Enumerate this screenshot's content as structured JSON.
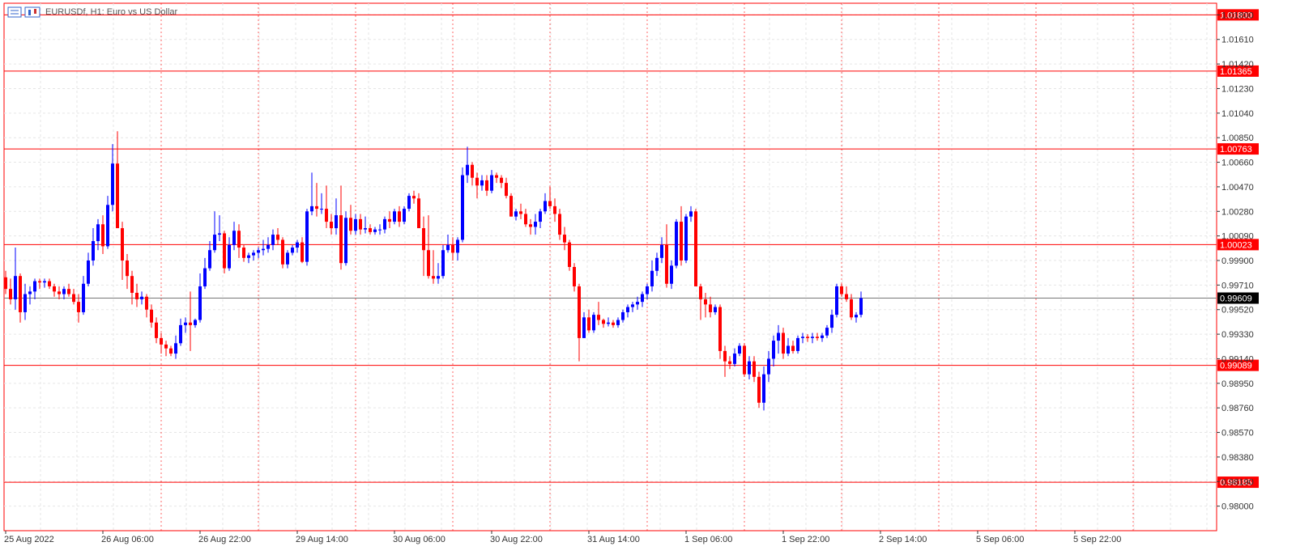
{
  "chart_data": {
    "type": "candlestick",
    "title": "EURUSDf, H1:  Euro vs US Dollar",
    "ylim": [
      0.9781,
      1.0189
    ],
    "y_ticks": [
      "1.01800",
      "1.01610",
      "1.01420",
      "1.01230",
      "1.01040",
      "1.00850",
      "1.00660",
      "1.00470",
      "1.00280",
      "1.00090",
      "0.99900",
      "0.99710",
      "0.99520",
      "0.99330",
      "0.99140",
      "0.98950",
      "0.98760",
      "0.98570",
      "0.98380",
      "0.98190",
      "0.98000"
    ],
    "x_labels": [
      "25 Aug 2022",
      "26 Aug 06:00",
      "26 Aug 22:00",
      "29 Aug 14:00",
      "30 Aug 06:00",
      "30 Aug 22:00",
      "31 Aug 14:00",
      "1 Sep 06:00",
      "1 Sep 22:00",
      "2 Sep 14:00",
      "5 Sep 06:00",
      "5 Sep 22:00"
    ],
    "horizontal_lines": [
      {
        "label": "1.01800",
        "value": 1.018,
        "color": "#ff0000"
      },
      {
        "label": "1.01365",
        "value": 1.01365,
        "color": "#ff0000"
      },
      {
        "label": "1.00763",
        "value": 1.00763,
        "color": "#ff0000"
      },
      {
        "label": "1.00023",
        "value": 1.00023,
        "color": "#ff0000"
      },
      {
        "label": "0.99089",
        "value": 0.99089,
        "color": "#ff0000"
      },
      {
        "label": "0.98185",
        "value": 0.98185,
        "color": "#ff0000"
      }
    ],
    "current_price": {
      "label": "0.99609",
      "value": 0.99609
    },
    "up_color": "#0000ff",
    "down_color": "#ff0000",
    "candles": [
      [
        0.9977,
        0.9982,
        0.9964,
        0.9968
      ],
      [
        0.9968,
        0.9976,
        0.9956,
        0.996
      ],
      [
        0.996,
        1.0,
        0.9952,
        0.9978
      ],
      [
        0.9978,
        0.998,
        0.9942,
        0.995
      ],
      [
        0.995,
        0.9972,
        0.9944,
        0.9964
      ],
      [
        0.9964,
        0.997,
        0.9956,
        0.9966
      ],
      [
        0.9966,
        0.9976,
        0.996,
        0.9974
      ],
      [
        0.9974,
        0.9976,
        0.9968,
        0.9973
      ],
      [
        0.9973,
        0.9976,
        0.9969,
        0.9974
      ],
      [
        0.9974,
        0.9976,
        0.9968,
        0.997
      ],
      [
        0.997,
        0.9972,
        0.9962,
        0.9966
      ],
      [
        0.9966,
        0.997,
        0.996,
        0.9964
      ],
      [
        0.9964,
        0.997,
        0.996,
        0.9968
      ],
      [
        0.9968,
        0.9972,
        0.9962,
        0.9964
      ],
      [
        0.9964,
        0.9968,
        0.9956,
        0.9958
      ],
      [
        0.9958,
        0.9964,
        0.9942,
        0.995
      ],
      [
        0.995,
        0.9978,
        0.9948,
        0.9972
      ],
      [
        0.9972,
        0.9996,
        0.997,
        0.999
      ],
      [
        0.999,
        1.0015,
        0.9986,
        1.0005
      ],
      [
        1.0005,
        1.0022,
        0.9998,
        1.0018
      ],
      [
        1.0018,
        1.0025,
        0.9995,
        1.0001
      ],
      [
        1.0001,
        1.004,
        0.9999,
        1.0033
      ],
      [
        1.0033,
        1.008,
        1.0028,
        1.0065
      ],
      [
        1.0065,
        1.009,
        1.0015,
        1.0015
      ],
      [
        1.0015,
        1.002,
        0.9975,
        0.999
      ],
      [
        0.999,
        0.9995,
        0.9968,
        0.9978
      ],
      [
        0.9978,
        0.9982,
        0.9956,
        0.9965
      ],
      [
        0.9965,
        0.9972,
        0.9954,
        0.996
      ],
      [
        0.996,
        0.9966,
        0.9956,
        0.9962
      ],
      [
        0.9962,
        0.9964,
        0.9946,
        0.9952
      ],
      [
        0.9952,
        0.9956,
        0.9938,
        0.9942
      ],
      [
        0.9942,
        0.9946,
        0.9926,
        0.993
      ],
      [
        0.993,
        0.9934,
        0.9918,
        0.9925
      ],
      [
        0.9925,
        0.9928,
        0.9916,
        0.9922
      ],
      [
        0.9922,
        0.9924,
        0.9916,
        0.9918
      ],
      [
        0.9918,
        0.9932,
        0.9914,
        0.9926
      ],
      [
        0.9926,
        0.9945,
        0.9924,
        0.994
      ],
      [
        0.994,
        0.9946,
        0.9934,
        0.9942
      ],
      [
        0.9942,
        0.9966,
        0.992,
        0.994
      ],
      [
        0.994,
        0.9945,
        0.9938,
        0.9944
      ],
      [
        0.9944,
        0.998,
        0.9942,
        0.997
      ],
      [
        0.997,
        0.9992,
        0.9968,
        0.9984
      ],
      [
        0.9984,
        1.0005,
        0.9982,
        0.9998
      ],
      [
        0.9998,
        1.0028,
        0.9996,
        1.001
      ],
      [
        1.001,
        1.0025,
        1.0005,
        1.0011
      ],
      [
        1.0011,
        1.0013,
        0.998,
        0.9984
      ],
      [
        0.9984,
        1.0008,
        0.9982,
        1.0002
      ],
      [
        1.0002,
        1.002,
        0.9998,
        1.0013
      ],
      [
        1.0013,
        1.0018,
        0.9992,
        1.0
      ],
      [
        1.0,
        1.0002,
        0.9989,
        0.9992
      ],
      [
        0.9992,
        0.9996,
        0.9988,
        0.9994
      ],
      [
        0.9994,
        0.9998,
        0.999,
        0.9996
      ],
      [
        0.9996,
        1.0,
        0.9992,
        0.9998
      ],
      [
        0.9998,
        1.0006,
        0.9994,
        0.9999
      ],
      [
        0.9999,
        1.0008,
        0.9996,
        1.0002
      ],
      [
        1.0002,
        1.0014,
        0.9998,
        1.001
      ],
      [
        1.001,
        1.0015,
        1.0002,
        1.0006
      ],
      [
        1.0006,
        1.0008,
        0.9984,
        0.9987
      ],
      [
        0.9987,
        0.9998,
        0.9984,
        0.9996
      ],
      [
        0.9996,
        1.0002,
        0.9994,
        1.0
      ],
      [
        1.0,
        1.0006,
        0.9996,
        1.0004
      ],
      [
        1.0004,
        1.0008,
        0.9988,
        0.9989
      ],
      [
        0.9989,
        1.003,
        0.9986,
        1.0028
      ],
      [
        1.0028,
        1.0058,
        1.0025,
        1.0032
      ],
      [
        1.0032,
        1.005,
        1.0024,
        1.003
      ],
      [
        1.003,
        1.0042,
        1.0026,
        1.003
      ],
      [
        1.003,
        1.0048,
        1.0015,
        1.002
      ],
      [
        1.002,
        1.0026,
        1.001,
        1.0015
      ],
      [
        1.0015,
        1.0038,
        1.001,
        1.0025
      ],
      [
        1.0025,
        1.0048,
        0.9983,
        0.9988
      ],
      [
        0.9988,
        1.0028,
        0.9986,
        1.0023
      ],
      [
        1.0023,
        1.0033,
        1.001,
        1.0013
      ],
      [
        1.0013,
        1.0026,
        1.001,
        1.0022
      ],
      [
        1.0022,
        1.0026,
        1.001,
        1.0014
      ],
      [
        1.0014,
        1.0024,
        1.0011,
        1.0015
      ],
      [
        1.0015,
        1.0018,
        1.001,
        1.0012
      ],
      [
        1.0012,
        1.0016,
        1.001,
        1.0014
      ],
      [
        1.0014,
        1.0018,
        1.001,
        1.0014
      ],
      [
        1.0014,
        1.0024,
        1.0011,
        1.0022
      ],
      [
        1.0022,
        1.0028,
        1.0015,
        1.002
      ],
      [
        1.002,
        1.003,
        1.0018,
        1.0028
      ],
      [
        1.0028,
        1.0032,
        1.0016,
        1.002
      ],
      [
        1.002,
        1.0032,
        1.0018,
        1.003
      ],
      [
        1.003,
        1.0042,
        1.0028,
        1.004
      ],
      [
        1.004,
        1.0044,
        1.0034,
        1.0038
      ],
      [
        1.0038,
        1.0042,
        1.0015,
        1.0015
      ],
      [
        1.0015,
        1.0024,
        0.9978,
        0.9998
      ],
      [
        0.9998,
        1.0025,
        0.9976,
        0.9978
      ],
      [
        0.9978,
        0.9998,
        0.9972,
        0.9976
      ],
      [
        0.9976,
        0.9988,
        0.9972,
        0.9978
      ],
      [
        0.9978,
        1.0002,
        0.9976,
        0.9998
      ],
      [
        0.9998,
        1.001,
        0.9996,
        1.0002
      ],
      [
        1.0002,
        1.0008,
        0.999,
        0.9996
      ],
      [
        0.9996,
        1.0008,
        0.999,
        1.0006
      ],
      [
        1.0006,
        1.0062,
        1.0004,
        1.0056
      ],
      [
        1.0056,
        1.0078,
        1.005,
        1.0064
      ],
      [
        1.0064,
        1.0066,
        1.0048,
        1.0054
      ],
      [
        1.0054,
        1.0058,
        1.0038,
        1.0048
      ],
      [
        1.0048,
        1.0056,
        1.0044,
        1.0052
      ],
      [
        1.0052,
        1.0056,
        1.004,
        1.0044
      ],
      [
        1.0044,
        1.006,
        1.0042,
        1.0056
      ],
      [
        1.0056,
        1.0058,
        1.005,
        1.0054
      ],
      [
        1.0054,
        1.0056,
        1.0046,
        1.005
      ],
      [
        1.005,
        1.0054,
        1.0038,
        1.004
      ],
      [
        1.004,
        1.0042,
        1.0024,
        1.0024
      ],
      [
        1.0024,
        1.003,
        1.0021,
        1.0028
      ],
      [
        1.0028,
        1.0034,
        1.0022,
        1.0026
      ],
      [
        1.0026,
        1.003,
        1.0016,
        1.0018
      ],
      [
        1.0018,
        1.0022,
        1.001,
        1.0016
      ],
      [
        1.0016,
        1.0026,
        1.001,
        1.002
      ],
      [
        1.002,
        1.003,
        1.0015,
        1.0028
      ],
      [
        1.0028,
        1.0042,
        1.0026,
        1.0036
      ],
      [
        1.0036,
        1.0047,
        1.003,
        1.0032
      ],
      [
        1.0032,
        1.0038,
        1.002,
        1.0026
      ],
      [
        1.0026,
        1.003,
        1.0006,
        1.001
      ],
      [
        1.001,
        1.0016,
        0.9998,
        1.0004
      ],
      [
        1.0004,
        1.0006,
        0.9982,
        0.9985
      ],
      [
        0.9985,
        0.9988,
        0.9966,
        0.997
      ],
      [
        0.997,
        0.9972,
        0.9912,
        0.993
      ],
      [
        0.993,
        0.995,
        0.993,
        0.9946
      ],
      [
        0.9946,
        0.9952,
        0.9934,
        0.9936
      ],
      [
        0.9936,
        0.995,
        0.9934,
        0.9948
      ],
      [
        0.9948,
        0.9958,
        0.994,
        0.9944
      ],
      [
        0.9944,
        0.9945,
        0.9938,
        0.9941
      ],
      [
        0.9941,
        0.9946,
        0.9939,
        0.9942
      ],
      [
        0.9942,
        0.9944,
        0.9938,
        0.994
      ],
      [
        0.994,
        0.9946,
        0.9938,
        0.9944
      ],
      [
        0.9944,
        0.9952,
        0.9942,
        0.995
      ],
      [
        0.995,
        0.9956,
        0.9946,
        0.9954
      ],
      [
        0.9954,
        0.9958,
        0.995,
        0.9956
      ],
      [
        0.9956,
        0.9962,
        0.9952,
        0.9958
      ],
      [
        0.9958,
        0.9966,
        0.9954,
        0.9964
      ],
      [
        0.9964,
        0.9972,
        0.996,
        0.997
      ],
      [
        0.997,
        0.999,
        0.9966,
        0.9982
      ],
      [
        0.9982,
        0.9996,
        0.9978,
        0.9992
      ],
      [
        0.9992,
        1.0008,
        0.9988,
        1.0002
      ],
      [
        1.0002,
        1.0018,
        0.9969,
        0.9972
      ],
      [
        0.9972,
        0.999,
        0.9968,
        0.9986
      ],
      [
        0.9986,
        1.0022,
        0.9984,
        1.002
      ],
      [
        1.002,
        1.0032,
        0.9986,
        0.999
      ],
      [
        0.999,
        1.0026,
        0.9988,
        1.0024
      ],
      [
        1.0024,
        1.0032,
        1.002,
        1.0028
      ],
      [
        1.0028,
        1.003,
        0.997,
        0.997
      ],
      [
        0.997,
        0.9972,
        0.9944,
        0.996
      ],
      [
        0.996,
        0.9965,
        0.9946,
        0.9956
      ],
      [
        0.9956,
        0.9962,
        0.9946,
        0.995
      ],
      [
        0.995,
        0.9956,
        0.9948,
        0.9954
      ],
      [
        0.9954,
        0.9956,
        0.9914,
        0.992
      ],
      [
        0.992,
        0.9924,
        0.99,
        0.9912
      ],
      [
        0.9912,
        0.9916,
        0.9906,
        0.991
      ],
      [
        0.991,
        0.9922,
        0.9908,
        0.9918
      ],
      [
        0.9918,
        0.9926,
        0.9916,
        0.9924
      ],
      [
        0.9924,
        0.9926,
        0.99,
        0.9902
      ],
      [
        0.9902,
        0.9916,
        0.9898,
        0.9912
      ],
      [
        0.9912,
        0.9916,
        0.9896,
        0.99
      ],
      [
        0.99,
        0.9904,
        0.9876,
        0.988
      ],
      [
        0.988,
        0.9908,
        0.9874,
        0.9902
      ],
      [
        0.9902,
        0.992,
        0.9896,
        0.9914
      ],
      [
        0.9914,
        0.9932,
        0.9908,
        0.9928
      ],
      [
        0.9928,
        0.994,
        0.9918,
        0.9934
      ],
      [
        0.9934,
        0.9938,
        0.9914,
        0.9918
      ],
      [
        0.9918,
        0.993,
        0.9916,
        0.9924
      ],
      [
        0.9924,
        0.9928,
        0.9918,
        0.992
      ],
      [
        0.992,
        0.9932,
        0.9918,
        0.993
      ],
      [
        0.993,
        0.9934,
        0.9926,
        0.9931
      ],
      [
        0.9931,
        0.9933,
        0.9927,
        0.993
      ],
      [
        0.993,
        0.9934,
        0.9926,
        0.9931
      ],
      [
        0.9931,
        0.9934,
        0.9928,
        0.993
      ],
      [
        0.993,
        0.9934,
        0.9927,
        0.9932
      ],
      [
        0.9932,
        0.994,
        0.993,
        0.9938
      ],
      [
        0.9938,
        0.9952,
        0.9934,
        0.9948
      ],
      [
        0.9948,
        0.9972,
        0.9946,
        0.997
      ],
      [
        0.997,
        0.9972,
        0.9962,
        0.9964
      ],
      [
        0.9964,
        0.997,
        0.9958,
        0.996
      ],
      [
        0.996,
        0.9964,
        0.9944,
        0.9946
      ],
      [
        0.9946,
        0.995,
        0.9942,
        0.9948
      ],
      [
        0.9948,
        0.9966,
        0.9946,
        0.99609
      ]
    ]
  }
}
